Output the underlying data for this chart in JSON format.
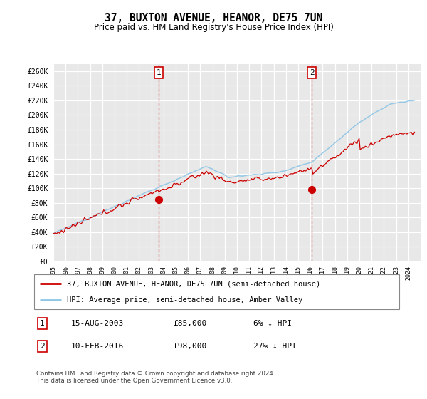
{
  "title": "37, BUXTON AVENUE, HEANOR, DE75 7UN",
  "subtitle": "Price paid vs. HM Land Registry's House Price Index (HPI)",
  "ylim": [
    0,
    270000
  ],
  "yticks": [
    0,
    20000,
    40000,
    60000,
    80000,
    100000,
    120000,
    140000,
    160000,
    180000,
    200000,
    220000,
    240000,
    260000
  ],
  "xlim_start": 1995,
  "xlim_end": 2025,
  "sale1_date": 2003.62,
  "sale1_price": 85000,
  "sale1_label": "1",
  "sale2_date": 2016.12,
  "sale2_price": 98000,
  "sale2_label": "2",
  "hpi_color": "#8ec6e6",
  "sale_color": "#cc0000",
  "bg_color": "#e8e8e8",
  "grid_color": "#ffffff",
  "legend_label_red": "37, BUXTON AVENUE, HEANOR, DE75 7UN (semi-detached house)",
  "legend_label_blue": "HPI: Average price, semi-detached house, Amber Valley",
  "table_rows": [
    {
      "num": "1",
      "date": "15-AUG-2003",
      "price": "£85,000",
      "relation": "6% ↓ HPI"
    },
    {
      "num": "2",
      "date": "10-FEB-2016",
      "price": "£98,000",
      "relation": "27% ↓ HPI"
    }
  ],
  "footnote": "Contains HM Land Registry data © Crown copyright and database right 2024.\nThis data is licensed under the Open Government Licence v3.0."
}
